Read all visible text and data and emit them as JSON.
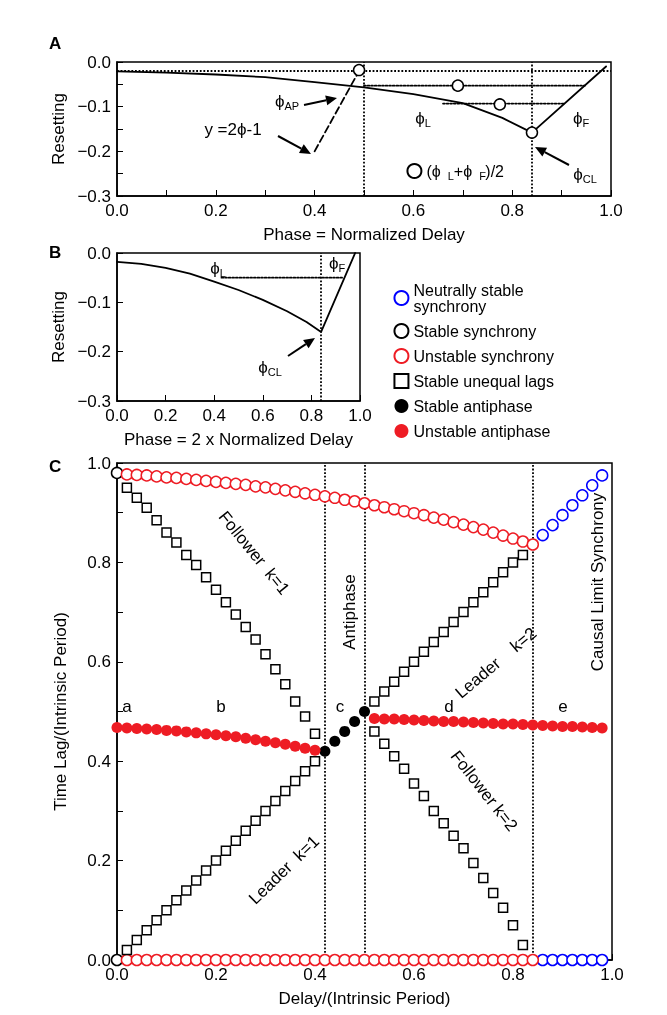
{
  "chart_data": [
    {
      "type": "line",
      "title": "A",
      "xlabel": "Phase = Normalized Delay",
      "ylabel": "Resetting",
      "xlim": [
        0,
        1
      ],
      "ylim": [
        -0.3,
        0
      ],
      "xticks": [
        {
          "value": 0,
          "label": "0.0"
        },
        {
          "value": 0.1,
          "label": null
        },
        {
          "value": 0.2,
          "label": "0.2"
        },
        {
          "value": 0.3,
          "label": null
        },
        {
          "value": 0.4,
          "label": "0.4"
        },
        {
          "value": 0.5,
          "label": null
        },
        {
          "value": 0.6,
          "label": "0.6"
        },
        {
          "value": 0.7,
          "label": null
        },
        {
          "value": 0.8,
          "label": "0.8"
        },
        {
          "value": 0.9,
          "label": null
        },
        {
          "value": 1,
          "label": "1.0"
        }
      ],
      "yticks": [
        {
          "value": -0.3,
          "label": "−0.3"
        },
        {
          "value": -0.25,
          "label": null
        },
        {
          "value": -0.2,
          "label": "−0.2"
        },
        {
          "value": -0.15,
          "label": null
        },
        {
          "value": -0.1,
          "label": "−0.1"
        },
        {
          "value": -0.05,
          "label": null
        },
        {
          "value": 0,
          "label": "0.0"
        }
      ],
      "series": [
        {
          "type": "line",
          "color": "#000000",
          "line_style": "solid",
          "marker": "none",
          "x": [
            0,
            0.1,
            0.2,
            0.3,
            0.4,
            0.5,
            0.6,
            0.7,
            0.78,
            0.84,
            0.99
          ],
          "values": [
            -0.021,
            -0.024,
            -0.028,
            -0.034,
            -0.045,
            -0.057,
            -0.072,
            -0.092,
            -0.125,
            -0.158,
            -0.01
          ]
        },
        {
          "type": "line",
          "color": "#000000",
          "line_style": "dashed",
          "marker": "none",
          "x": [
            0.4,
            0.49
          ],
          "values": [
            -0.2,
            -0.02
          ]
        },
        {
          "type": "line",
          "color": "#000000",
          "line_style": "dotted",
          "marker": "none",
          "x": [
            0.5,
            0.947
          ],
          "values": [
            -0.053,
            -0.053
          ]
        },
        {
          "type": "line",
          "color": "#000000",
          "line_style": "dotted",
          "marker": "none",
          "x": [
            0.66,
            0.905
          ],
          "values": [
            -0.093,
            -0.093
          ]
        },
        {
          "type": "scatter",
          "name": "(ϕ$_{L}$+ϕ$_{F}$)/2",
          "color": "#000000",
          "marker": "circle",
          "x": [
            0.49,
            0.69,
            0.775,
            0.84
          ],
          "values": [
            -0.018,
            -0.053,
            -0.095,
            -0.158
          ]
        }
      ],
      "ref_lines": [
        {
          "axis": "y",
          "value": -0.018,
          "label": null,
          "color": "#000000",
          "line_style": "dotted"
        },
        {
          "axis": "x",
          "value": 0.5,
          "label": null,
          "color": "#000000",
          "line_style": "dotted"
        },
        {
          "axis": "x",
          "value": 0.84,
          "label": null,
          "color": "#000000",
          "line_style": "dotted"
        }
      ],
      "annotations": [
        "ϕ$_{AP}$",
        "y =2ϕ-1",
        "ϕ$_{L}$",
        "ϕ$_{F}$",
        "ϕ$_{CL}$"
      ],
      "legend": "bottom right",
      "grid": false
    },
    {
      "type": "line",
      "title": "B",
      "xlabel": "Phase = 2 x Normalized Delay",
      "ylabel": "Resetting",
      "xlim": [
        0,
        1
      ],
      "ylim": [
        -0.3,
        0
      ],
      "xticks": [
        {
          "value": 0,
          "label": "0.0"
        },
        {
          "value": 0.2,
          "label": "0.2"
        },
        {
          "value": 0.4,
          "label": "0.4"
        },
        {
          "value": 0.6,
          "label": "0.6"
        },
        {
          "value": 0.8,
          "label": "0.8"
        },
        {
          "value": 1,
          "label": "1.0"
        }
      ],
      "yticks": [
        {
          "value": -0.3,
          "label": "−0.3"
        },
        {
          "value": -0.2,
          "label": "−0.2"
        },
        {
          "value": -0.1,
          "label": "−0.1"
        },
        {
          "value": 0,
          "label": "0.0"
        }
      ],
      "series": [
        {
          "type": "line",
          "color": "#000000",
          "line_style": "solid",
          "marker": "none",
          "x": [
            0,
            0.1,
            0.2,
            0.3,
            0.4,
            0.5,
            0.6,
            0.7,
            0.78,
            0.84,
            0.98
          ],
          "values": [
            -0.018,
            -0.022,
            -0.03,
            -0.042,
            -0.058,
            -0.075,
            -0.095,
            -0.118,
            -0.14,
            -0.16,
            0
          ]
        },
        {
          "type": "line",
          "color": "#000000",
          "line_style": "dotted",
          "marker": "none",
          "x": [
            0.43,
            0.93
          ],
          "values": [
            -0.05,
            -0.05
          ]
        }
      ],
      "ref_lines": [
        {
          "axis": "x",
          "value": 0.84,
          "label": null,
          "color": "#000000",
          "line_style": "dotted"
        }
      ],
      "annotations": [
        "ϕ$_{L}$",
        "ϕ$_{F}$",
        "ϕ$_{CL}$"
      ],
      "grid": false
    },
    {
      "type": "scatter",
      "title": "C",
      "xlabel": "Delay/(Intrinsic Period)",
      "ylabel": "Time Lag/(Intrinsic Period)",
      "xlim": [
        0,
        1
      ],
      "ylim": [
        0,
        1
      ],
      "xticks": [
        {
          "value": 0,
          "label": "0.0"
        },
        {
          "value": 0.1,
          "label": null
        },
        {
          "value": 0.2,
          "label": "0.2"
        },
        {
          "value": 0.3,
          "label": null
        },
        {
          "value": 0.4,
          "label": "0.4"
        },
        {
          "value": 0.5,
          "label": null
        },
        {
          "value": 0.6,
          "label": "0.6"
        },
        {
          "value": 0.7,
          "label": null
        },
        {
          "value": 0.8,
          "label": "0.8"
        },
        {
          "value": 0.9,
          "label": null
        },
        {
          "value": 1,
          "label": "1.0"
        }
      ],
      "yticks": [
        {
          "value": 0,
          "label": "0.0"
        },
        {
          "value": 0.1,
          "label": null
        },
        {
          "value": 0.2,
          "label": "0.2"
        },
        {
          "value": 0.3,
          "label": null
        },
        {
          "value": 0.4,
          "label": "0.4"
        },
        {
          "value": 0.5,
          "label": null
        },
        {
          "value": 0.6,
          "label": "0.6"
        },
        {
          "value": 0.7,
          "label": null
        },
        {
          "value": 0.8,
          "label": "0.8"
        },
        {
          "value": 0.9,
          "label": null
        },
        {
          "value": 1,
          "label": "1.0"
        }
      ],
      "series": [
        {
          "name": "Neutrally stable synchrony",
          "color": "#0000ff",
          "marker": "circle",
          "x": [
            0.86,
            0.88,
            0.9,
            0.92,
            0.94,
            0.96,
            0.98,
            0.86,
            0.88,
            0.9,
            0.92,
            0.94,
            0.96,
            0.98
          ],
          "values": [
            0.855,
            0.875,
            0.895,
            0.915,
            0.935,
            0.955,
            0.975,
            0,
            0,
            0,
            0,
            0,
            0,
            0
          ]
        },
        {
          "name": "Stable synchrony",
          "color": "#000000",
          "marker": "circle",
          "x": [
            0,
            0
          ],
          "values": [
            0.98,
            0
          ]
        },
        {
          "name": "Unstable synchrony",
          "color": "#ee1c24",
          "marker": "circle",
          "x": [
            0.02,
            0.04,
            0.06,
            0.08,
            0.1,
            0.12,
            0.14,
            0.16,
            0.18,
            0.2,
            0.22,
            0.24,
            0.26,
            0.28,
            0.3,
            0.32,
            0.34,
            0.36,
            0.38,
            0.4,
            0.42,
            0.44,
            0.46,
            0.48,
            0.5,
            0.52,
            0.54,
            0.56,
            0.58,
            0.6,
            0.62,
            0.64,
            0.66,
            0.68,
            0.7,
            0.72,
            0.74,
            0.76,
            0.78,
            0.8,
            0.82,
            0.84,
            0.02,
            0.04,
            0.06,
            0.08,
            0.1,
            0.12,
            0.14,
            0.16,
            0.18,
            0.2,
            0.22,
            0.24,
            0.26,
            0.28,
            0.3,
            0.32,
            0.34,
            0.36,
            0.38,
            0.4,
            0.42,
            0.44,
            0.46,
            0.48,
            0.5,
            0.52,
            0.54,
            0.56,
            0.58,
            0.6,
            0.62,
            0.64,
            0.66,
            0.68,
            0.7,
            0.72,
            0.74,
            0.76,
            0.78,
            0.8,
            0.82,
            0.84
          ],
          "values": [
            0.977,
            0.976,
            0.975,
            0.973,
            0.971,
            0.97,
            0.968,
            0.966,
            0.964,
            0.962,
            0.96,
            0.958,
            0.956,
            0.953,
            0.951,
            0.948,
            0.945,
            0.942,
            0.939,
            0.936,
            0.933,
            0.93,
            0.926,
            0.923,
            0.919,
            0.915,
            0.911,
            0.907,
            0.903,
            0.899,
            0.895,
            0.89,
            0.886,
            0.881,
            0.876,
            0.871,
            0.866,
            0.86,
            0.854,
            0.848,
            0.842,
            0.836,
            0,
            0,
            0,
            0,
            0,
            0,
            0,
            0,
            0,
            0,
            0,
            0,
            0,
            0,
            0,
            0,
            0,
            0,
            0,
            0,
            0,
            0,
            0,
            0,
            0,
            0,
            0,
            0,
            0,
            0,
            0,
            0,
            0,
            0,
            0,
            0,
            0,
            0,
            0,
            0,
            0,
            0
          ]
        },
        {
          "name": "Stable unequal lags",
          "color": "#000000",
          "marker": "square",
          "x": [
            0.02,
            0.04,
            0.06,
            0.08,
            0.1,
            0.12,
            0.14,
            0.16,
            0.18,
            0.2,
            0.22,
            0.24,
            0.26,
            0.28,
            0.3,
            0.32,
            0.34,
            0.36,
            0.38,
            0.4,
            0.02,
            0.04,
            0.06,
            0.08,
            0.1,
            0.12,
            0.14,
            0.16,
            0.18,
            0.2,
            0.22,
            0.24,
            0.26,
            0.28,
            0.3,
            0.32,
            0.34,
            0.36,
            0.38,
            0.4,
            0.52,
            0.54,
            0.56,
            0.58,
            0.6,
            0.62,
            0.64,
            0.66,
            0.68,
            0.7,
            0.72,
            0.74,
            0.76,
            0.78,
            0.8,
            0.82,
            0.52,
            0.54,
            0.56,
            0.58,
            0.6,
            0.62,
            0.64,
            0.66,
            0.68,
            0.7,
            0.72,
            0.74,
            0.76,
            0.78,
            0.8,
            0.82
          ],
          "values": [
            0.02,
            0.04,
            0.06,
            0.08,
            0.1,
            0.12,
            0.14,
            0.16,
            0.18,
            0.2,
            0.22,
            0.24,
            0.26,
            0.28,
            0.3,
            0.32,
            0.34,
            0.36,
            0.38,
            0.4,
            0.95,
            0.93,
            0.91,
            0.885,
            0.86,
            0.84,
            0.815,
            0.795,
            0.77,
            0.745,
            0.72,
            0.695,
            0.67,
            0.645,
            0.615,
            0.585,
            0.555,
            0.52,
            0.49,
            0.455,
            0.52,
            0.54,
            0.56,
            0.58,
            0.6,
            0.62,
            0.64,
            0.66,
            0.68,
            0.7,
            0.72,
            0.74,
            0.76,
            0.78,
            0.8,
            0.815,
            0.46,
            0.435,
            0.41,
            0.385,
            0.355,
            0.33,
            0.3,
            0.275,
            0.25,
            0.225,
            0.195,
            0.165,
            0.135,
            0.105,
            0.07,
            0.03
          ]
        },
        {
          "name": "Stable antiphase",
          "color": "#000000",
          "marker": "circle",
          "x": [
            0.42,
            0.44,
            0.46,
            0.48,
            0.5
          ],
          "values": [
            0.42,
            0.44,
            0.46,
            0.48,
            0.5
          ]
        },
        {
          "name": "Unstable antiphase",
          "color": "#ee1c24",
          "marker": "circle",
          "x": [
            0,
            0.02,
            0.04,
            0.06,
            0.08,
            0.1,
            0.12,
            0.14,
            0.16,
            0.18,
            0.2,
            0.22,
            0.24,
            0.26,
            0.28,
            0.3,
            0.32,
            0.34,
            0.36,
            0.38,
            0.4,
            0.52,
            0.54,
            0.56,
            0.58,
            0.6,
            0.62,
            0.64,
            0.66,
            0.68,
            0.7,
            0.72,
            0.74,
            0.76,
            0.78,
            0.8,
            0.82,
            0.84,
            0.86,
            0.88,
            0.9,
            0.92,
            0.94,
            0.96,
            0.98
          ],
          "values": [
            0.468,
            0.467,
            0.466,
            0.465,
            0.464,
            0.462,
            0.461,
            0.459,
            0.457,
            0.455,
            0.453,
            0.451,
            0.449,
            0.446,
            0.443,
            0.44,
            0.437,
            0.434,
            0.43,
            0.426,
            0.422,
            0.486,
            0.485,
            0.485,
            0.484,
            0.483,
            0.482,
            0.481,
            0.48,
            0.48,
            0.479,
            0.478,
            0.477,
            0.476,
            0.475,
            0.475,
            0.474,
            0.473,
            0.472,
            0.471,
            0.47,
            0.47,
            0.469,
            0.468,
            0.467
          ]
        }
      ],
      "ref_lines": [
        {
          "axis": "x",
          "value": 0.42,
          "label": null,
          "color": "#000000",
          "line_style": "dotted"
        },
        {
          "axis": "x",
          "value": 0.5,
          "label": null,
          "color": "#000000",
          "line_style": "dotted"
        },
        {
          "axis": "x",
          "value": 0.84,
          "label": null,
          "color": "#000000",
          "line_style": "dotted"
        }
      ],
      "annotations": [
        "a",
        "b",
        "c",
        "d",
        "e",
        "Follower  k=1",
        "Leader  k=1",
        "Antiphase",
        "Leader    k=2",
        "Follower k=2",
        "Causal Limit Synchrony"
      ],
      "legend": "top right",
      "grid": false
    }
  ]
}
